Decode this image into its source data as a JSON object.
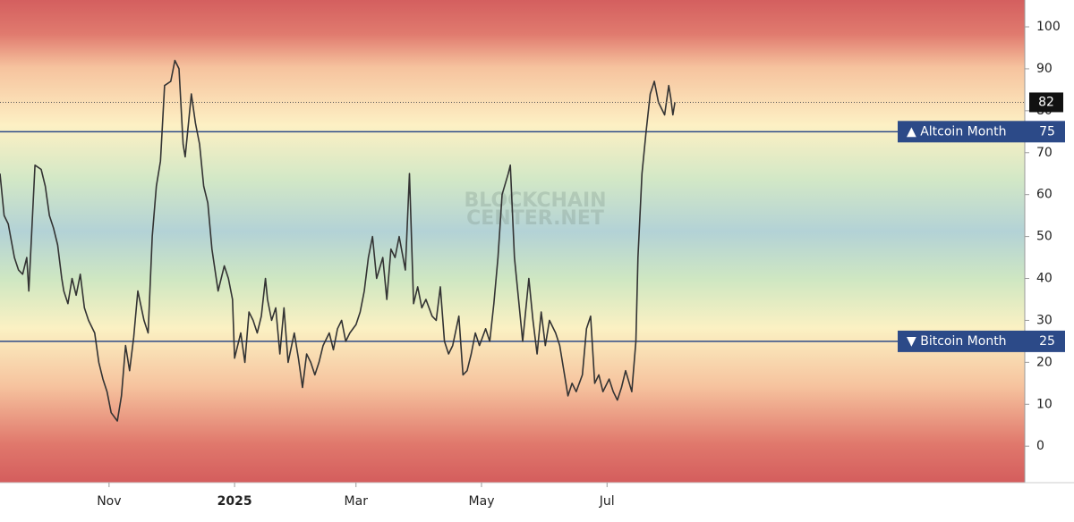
{
  "chart_data": {
    "type": "line",
    "watermark": [
      "BLOCKCHAIN",
      "CENTER.NET"
    ],
    "xlim": [
      0,
      498
    ],
    "xticks": [
      {
        "value": 53,
        "label": "Nov"
      },
      {
        "value": 114,
        "label": "2025"
      },
      {
        "value": 173,
        "label": "Mar"
      },
      {
        "value": 234,
        "label": "May"
      },
      {
        "value": 295,
        "label": "Jul"
      }
    ],
    "ylim": [
      -8.7,
      106.4
    ],
    "yticks": [
      0,
      10,
      20,
      30,
      40,
      50,
      60,
      70,
      80,
      90,
      100
    ],
    "x": [
      0,
      2,
      4,
      7,
      9,
      11,
      13,
      14,
      17,
      20,
      22,
      24,
      26,
      28,
      30,
      31,
      33,
      35,
      37,
      39,
      41,
      43,
      46,
      48,
      50,
      52,
      54,
      57,
      59,
      61,
      63,
      65,
      67,
      70,
      72,
      74,
      76,
      78,
      80,
      83,
      85,
      87,
      89,
      90,
      93,
      95,
      97,
      99,
      101,
      103,
      106,
      109,
      111,
      113,
      114,
      117,
      119,
      121,
      123,
      125,
      127,
      129,
      130,
      132,
      134,
      136,
      138,
      140,
      143,
      145,
      147,
      149,
      151,
      153,
      155,
      157,
      160,
      162,
      164,
      166,
      168,
      170,
      173,
      175,
      177,
      179,
      181,
      183,
      186,
      188,
      190,
      192,
      194,
      197,
      199,
      201,
      203,
      205,
      207,
      210,
      212,
      214,
      216,
      218,
      220,
      223,
      225,
      227,
      229,
      231,
      233,
      236,
      238,
      240,
      242,
      244,
      247,
      248,
      250,
      252,
      254,
      257,
      259,
      261,
      263,
      265,
      267,
      270,
      272,
      274,
      276,
      278,
      280,
      283,
      285,
      287,
      289,
      291,
      293,
      296,
      298,
      300,
      302,
      304,
      307,
      309,
      310,
      312,
      314,
      316,
      318,
      320,
      323,
      325,
      326,
      327,
      328
    ],
    "series": [
      {
        "color": "#333333",
        "values": [
          65,
          55,
          53,
          45,
          42,
          41,
          45,
          37,
          67,
          66,
          62,
          55,
          52,
          48,
          40,
          37,
          34,
          40,
          36,
          41,
          33,
          30,
          27,
          20,
          16,
          13,
          8,
          6,
          12,
          24,
          18,
          26,
          37,
          30,
          27,
          50,
          62,
          68,
          86,
          87,
          92,
          90,
          72,
          69,
          84,
          77,
          72,
          62,
          58,
          47,
          37,
          43,
          40,
          35,
          21,
          27,
          20,
          32,
          30,
          27,
          31,
          40,
          35,
          30,
          33,
          22,
          33,
          20,
          27,
          21,
          14,
          22,
          20,
          17,
          20,
          24,
          27,
          23,
          28,
          30,
          25,
          27,
          29,
          32,
          37,
          45,
          50,
          40,
          45,
          35,
          47,
          45,
          50,
          42,
          65,
          34,
          38,
          33,
          35,
          31,
          30,
          38,
          25,
          22,
          24,
          31,
          17,
          18,
          22,
          27,
          24,
          28,
          25,
          34,
          45,
          60,
          65,
          67,
          45,
          35,
          25,
          40,
          30,
          22,
          32,
          24,
          30,
          27,
          24,
          18,
          12,
          15,
          13,
          17,
          28,
          31,
          15,
          17,
          13,
          16,
          13,
          11,
          14,
          18,
          13,
          25,
          45,
          65,
          75,
          84,
          87,
          82,
          79,
          86,
          83,
          79,
          82
        ]
      }
    ],
    "reference_lines": [
      {
        "label": "▲ Altcoin Month",
        "value": 75,
        "color": "#2c4a88"
      },
      {
        "label": "▼ Bitcoin Month",
        "value": 25,
        "color": "#2c4a88"
      }
    ]
  }
}
